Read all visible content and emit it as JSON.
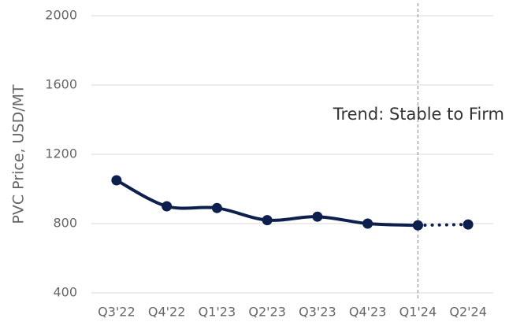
{
  "chart_data": {
    "type": "line",
    "y_label": "PVC Price, USD/MT",
    "annotation": "Trend: Stable to Firm",
    "categories": [
      "Q3'22",
      "Q4'22",
      "Q1'23",
      "Q2'23",
      "Q3'23",
      "Q4'23",
      "Q1'24",
      "Q2'24"
    ],
    "series": [
      {
        "color": "#0d1f4d",
        "style": "solid",
        "values": [
          1050,
          900,
          890,
          820,
          840,
          800,
          790,
          null
        ]
      },
      {
        "color": "#0d1f4d",
        "style": "dotted",
        "values": [
          null,
          null,
          null,
          null,
          null,
          null,
          790,
          795
        ]
      }
    ],
    "ylim": [
      400,
      2000
    ],
    "yticks": [
      400,
      800,
      1200,
      1600,
      2000
    ],
    "grid": true,
    "vline_category": "Q1'24"
  }
}
